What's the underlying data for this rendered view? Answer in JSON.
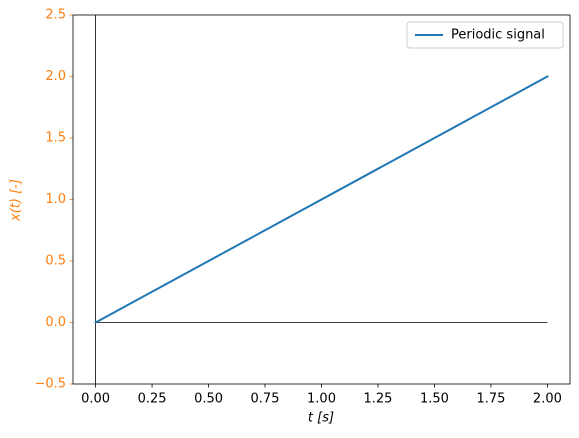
{
  "chart_data": {
    "type": "line",
    "xlabel": "t [s]",
    "ylabel": "x(t) [-]",
    "x": [
      0,
      2
    ],
    "series": [
      {
        "name": "Periodic signal",
        "color": "#1f77b4",
        "values": [
          0,
          2
        ]
      }
    ],
    "xlim": [
      -0.1,
      2.1
    ],
    "ylim": [
      -0.5,
      2.5
    ],
    "xticks": [
      {
        "value": 0,
        "label": "0.00"
      },
      {
        "value": 0.25,
        "label": "0.25"
      },
      {
        "value": 0.5,
        "label": "0.50"
      },
      {
        "value": 0.75,
        "label": "0.75"
      },
      {
        "value": 1,
        "label": "1.00"
      },
      {
        "value": 1.25,
        "label": "1.25"
      },
      {
        "value": 1.5,
        "label": "1.50"
      },
      {
        "value": 1.75,
        "label": "1.75"
      },
      {
        "value": 2,
        "label": "2.00"
      }
    ],
    "yticks": [
      {
        "value": -0.5,
        "label": "−0.5"
      },
      {
        "value": 0,
        "label": "0.0"
      },
      0.5,
      {
        "value": 1,
        "label": "1.0"
      },
      1.5,
      {
        "value": 2,
        "label": "2.0"
      },
      2.5
    ],
    "y_axis_color": "#ff7f0e",
    "legend": "upper right"
  }
}
